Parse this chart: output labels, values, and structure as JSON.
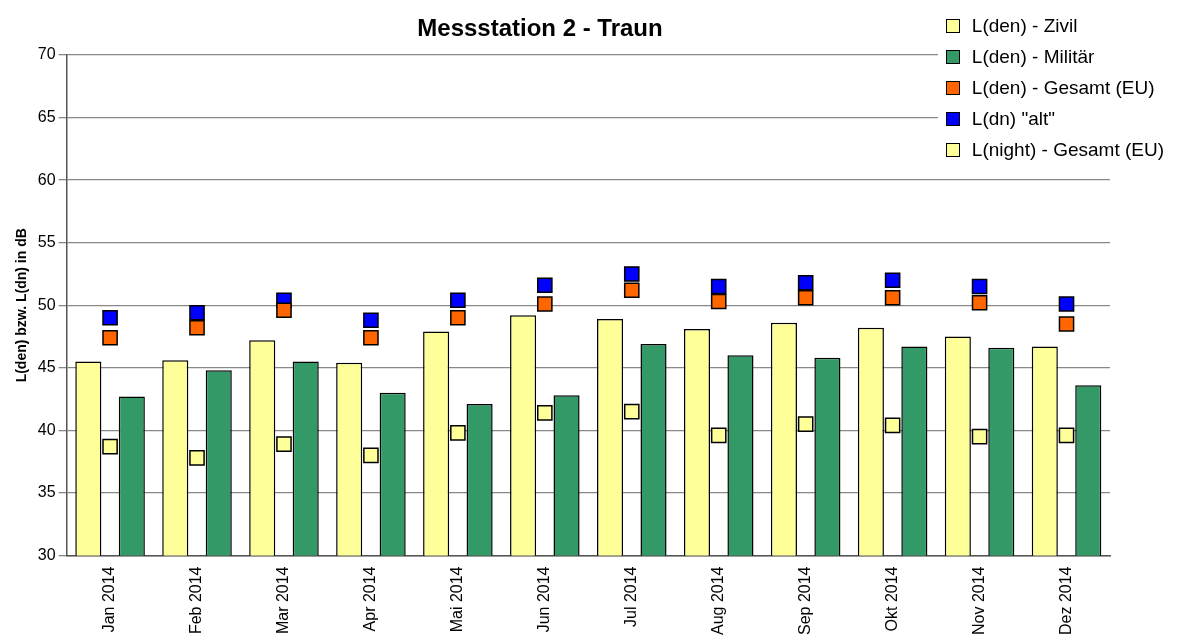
{
  "chart_data": {
    "type": "bar",
    "title": "Messstation 2 - Traun",
    "ylabel": "L(den) bzw. L(dn) in dB",
    "categories": [
      "Jan 2014",
      "Feb 2014",
      "Mar 2014",
      "Apr 2014",
      "Mai 2014",
      "Jun 2014",
      "Jul 2014",
      "Aug 2014",
      "Sep 2014",
      "Okt 2014",
      "Nov 2014",
      "Dez 2014"
    ],
    "series": [
      {
        "name": "L(den) - Zivil",
        "color": "#ffff99",
        "values": [
          45.5,
          45.6,
          47.2,
          45.4,
          47.9,
          49.2,
          48.9,
          48.1,
          48.6,
          48.2,
          47.5,
          46.7
        ]
      },
      {
        "name": "L(den) - Militär",
        "color": "#339966",
        "values": [
          42.7,
          44.8,
          45.5,
          43.0,
          42.1,
          42.8,
          46.9,
          46.0,
          45.8,
          46.7,
          46.6,
          43.6
        ]
      },
      {
        "name": "L(den) - Gesamt (EU)",
        "type": "scatter",
        "color": "#ff6600",
        "values": [
          47.4,
          48.2,
          49.6,
          47.4,
          49.0,
          50.1,
          51.2,
          50.3,
          50.6,
          50.6,
          50.2,
          48.5
        ]
      },
      {
        "name": "L(dn) \"alt\"",
        "type": "scatter",
        "color": "#0000ff",
        "values": [
          49.0,
          49.4,
          50.4,
          48.8,
          50.4,
          51.6,
          52.5,
          51.5,
          51.8,
          52.0,
          51.5,
          50.1
        ]
      },
      {
        "name": "L(night) - Gesamt (EU)",
        "type": "scatter",
        "color": "#ffff99",
        "values": [
          38.7,
          37.8,
          38.9,
          38.0,
          39.8,
          41.4,
          41.5,
          39.6,
          40.5,
          40.4,
          39.5,
          39.6
        ]
      }
    ],
    "ylim": [
      30,
      70
    ],
    "yticks": [
      30,
      35,
      40,
      45,
      50,
      55,
      60,
      65,
      70
    ],
    "grid": "y",
    "legend": "top right",
    "marker": "square"
  }
}
